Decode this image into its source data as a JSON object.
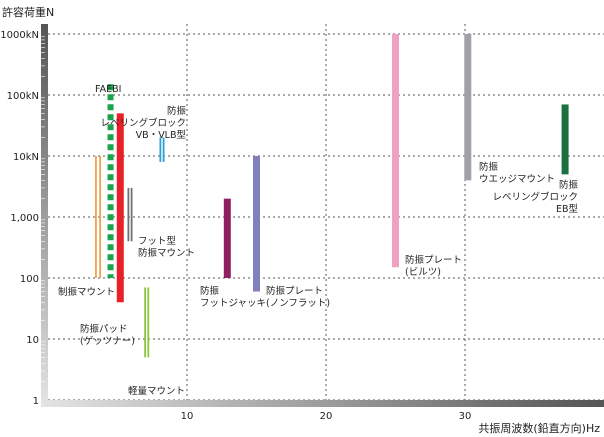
{
  "chart_data": {
    "type": "range-bar",
    "ylabel": "許容荷重N",
    "xlabel": "共振周波数(鉛直方向)Hz",
    "y_scale": "log",
    "ylim": [
      1,
      1000000
    ],
    "xlim": [
      0,
      40
    ],
    "y_ticks": [
      {
        "value": 1,
        "label": "1"
      },
      {
        "value": 10,
        "label": "10"
      },
      {
        "value": 100,
        "label": "100"
      },
      {
        "value": 1000,
        "label": "1,000"
      },
      {
        "value": 10000,
        "label": "10kN"
      },
      {
        "value": 100000,
        "label": "100kN"
      },
      {
        "value": 1000000,
        "label": "1000kN"
      }
    ],
    "x_ticks": [
      {
        "value": 10,
        "label": "10"
      },
      {
        "value": 20,
        "label": "20"
      },
      {
        "value": 30,
        "label": "30"
      }
    ],
    "grid": true,
    "series": [
      {
        "name": "FAEBI",
        "label_lines": [
          "FAEBI"
        ],
        "x": 4.5,
        "y_min": 100,
        "y_max": 150000,
        "color": "#1aa34a",
        "style": "dashed",
        "width": 6
      },
      {
        "name": "制振マウント",
        "label_lines": [
          "制振マウント"
        ],
        "x": 3.6,
        "y_min": 100,
        "y_max": 10000,
        "color": "#f0a050",
        "style": "double",
        "width": 6
      },
      {
        "name": "防振パッド(ゲッツナー)",
        "label_lines": [
          "防振パッド",
          "(ゲッツナー)"
        ],
        "x": 5.2,
        "y_min": 40,
        "y_max": 50000,
        "color": "#e8202a",
        "style": "solid",
        "width": 7
      },
      {
        "name": "フット型防振マウント",
        "label_lines": [
          "フット型",
          "防振マウント"
        ],
        "x": 5.9,
        "y_min": 400,
        "y_max": 3000,
        "color": "#707070",
        "style": "double",
        "width": 5
      },
      {
        "name": "防振レベリングブロックVB・VLB型",
        "label_lines": [
          "防振",
          "レベリングブロック",
          "VB・VLB型"
        ],
        "x": 8.2,
        "y_min": 8000,
        "y_max": 20000,
        "color": "#2aa0d8",
        "style": "double",
        "width": 5
      },
      {
        "name": "軽量マウント",
        "label_lines": [
          "軽量マウント"
        ],
        "x": 7.1,
        "y_min": 5,
        "y_max": 70,
        "color": "#8cc840",
        "style": "double",
        "width": 5
      },
      {
        "name": "防振フットジャッキ",
        "label_lines": [
          "防振",
          "フットジャッキ"
        ],
        "x": 12.9,
        "y_min": 100,
        "y_max": 2000,
        "color": "#902060",
        "style": "solid",
        "width": 7
      },
      {
        "name": "防振プレート(ノンフラット)",
        "label_lines": [
          "防振プレート",
          "(ノンフラット)"
        ],
        "x": 15.0,
        "y_min": 60,
        "y_max": 10000,
        "color": "#8080c0",
        "style": "solid",
        "width": 7
      },
      {
        "name": "防振プレート(ビルツ)",
        "label_lines": [
          "防振プレート",
          "(ビルツ)"
        ],
        "x": 25.0,
        "y_min": 150,
        "y_max": 1000000,
        "color": "#f0a0c0",
        "style": "solid",
        "width": 7
      },
      {
        "name": "防振ウエッジマウント",
        "label_lines": [
          "防振",
          "ウエッジマウント"
        ],
        "x": 30.2,
        "y_min": 4000,
        "y_max": 1000000,
        "color": "#a0a0a8",
        "style": "solid",
        "width": 7
      },
      {
        "name": "防振レベリングブロックEB型",
        "label_lines": [
          "防振",
          "レベリングブロック",
          "EB型"
        ],
        "x": 37.2,
        "y_min": 5000,
        "y_max": 70000,
        "color": "#1a7040",
        "style": "solid",
        "width": 7
      }
    ]
  }
}
